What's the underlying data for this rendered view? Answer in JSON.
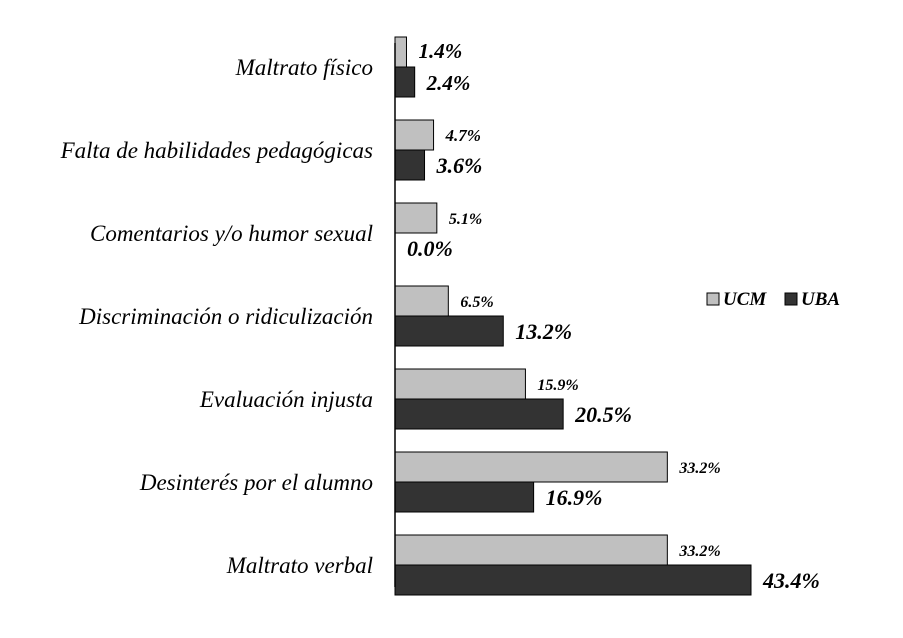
{
  "chart_data": {
    "type": "bar",
    "orientation": "horizontal",
    "categories": [
      "Maltrato físico",
      "Falta de habilidades pedagógicas",
      "Comentarios y/o humor sexual",
      "Discriminación o ridiculización",
      "Evaluación injusta",
      "Desinterés por el alumno",
      "Maltrato verbal"
    ],
    "series": [
      {
        "name": "UCM",
        "color": "#c0c0c0",
        "values": [
          1.4,
          4.7,
          5.1,
          6.5,
          15.9,
          33.2,
          33.2
        ],
        "labels": [
          "1.4%",
          "4.7%",
          "5.1%",
          "6.5%",
          "15.9%",
          "33.2%",
          "33.2%"
        ]
      },
      {
        "name": "UBA",
        "color": "#333333",
        "values": [
          2.4,
          3.6,
          0.0,
          13.2,
          20.5,
          16.9,
          43.4
        ],
        "labels": [
          "2.4%",
          "3.6%",
          "0.0%",
          "13.2%",
          "20.5%",
          "16.9%",
          "43.4%"
        ]
      }
    ],
    "title": "",
    "xlabel": "",
    "ylabel": "",
    "xlim": [
      0,
      43.4
    ],
    "grid": false,
    "legend": "right"
  }
}
